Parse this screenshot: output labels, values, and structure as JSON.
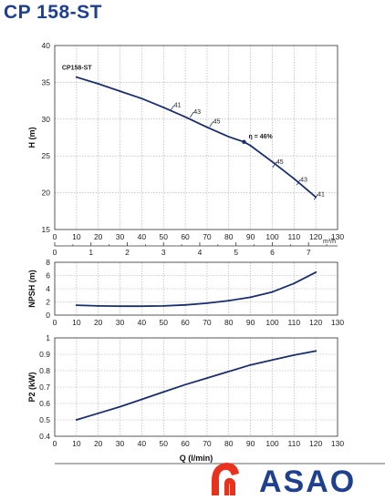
{
  "title": "CP 158-ST",
  "logo_text": "ASAO",
  "colors": {
    "curve": "#1a2e6c",
    "title": "#1f3f8f",
    "grid": "#aaaaaa",
    "logo_red": "#e8321e",
    "logo_blue": "#1f3f8f"
  },
  "chart_data": [
    {
      "type": "line",
      "ylabel": "H (m)",
      "xlim": [
        0,
        130
      ],
      "ylim": [
        15,
        40
      ],
      "yticks": [
        15,
        20,
        25,
        30,
        35,
        40
      ],
      "xticks": [
        0,
        10,
        20,
        30,
        40,
        50,
        60,
        70,
        80,
        90,
        100,
        110,
        120,
        130
      ],
      "secondary_x": {
        "label": "m³/h",
        "ticks": [
          0,
          1,
          2,
          3,
          4,
          5,
          6,
          7
        ]
      },
      "grid": true,
      "series": [
        {
          "name": "CP158-ST",
          "x": [
            10,
            20,
            30,
            40,
            50,
            60,
            70,
            80,
            87,
            90,
            100,
            110,
            120
          ],
          "y": [
            35.7,
            34.8,
            33.8,
            32.8,
            31.6,
            30.3,
            28.9,
            27.6,
            26.9,
            26.4,
            24.2,
            21.9,
            19.4
          ]
        }
      ],
      "annotations": [
        {
          "text": "41",
          "x": 54,
          "y": 31.5
        },
        {
          "text": "43",
          "x": 63,
          "y": 30.6
        },
        {
          "text": "45",
          "x": 72,
          "y": 29.3
        },
        {
          "text": "η = 46%",
          "x": 87,
          "y": 26.9
        },
        {
          "text": "45",
          "x": 101,
          "y": 23.8
        },
        {
          "text": "43",
          "x": 112,
          "y": 21.4
        },
        {
          "text": "41",
          "x": 120,
          "y": 19.4
        }
      ]
    },
    {
      "type": "line",
      "ylabel": "NPSH (m)",
      "xlim": [
        0,
        130
      ],
      "ylim": [
        0,
        8
      ],
      "yticks": [
        0,
        2,
        4,
        6,
        8
      ],
      "xticks": [
        0,
        10,
        20,
        30,
        40,
        50,
        60,
        70,
        80,
        90,
        100,
        110,
        120,
        130
      ],
      "grid": true,
      "series": [
        {
          "x": [
            10,
            20,
            30,
            40,
            50,
            60,
            70,
            80,
            90,
            100,
            110,
            120
          ],
          "y": [
            1.5,
            1.4,
            1.35,
            1.35,
            1.4,
            1.55,
            1.8,
            2.2,
            2.7,
            3.5,
            4.8,
            6.5
          ]
        }
      ]
    },
    {
      "type": "line",
      "xlabel": "Q (l/min)",
      "ylabel": "P2 (kW)",
      "xlim": [
        0,
        130
      ],
      "ylim": [
        0.4,
        1.0
      ],
      "yticks": [
        0.4,
        0.5,
        0.6,
        0.7,
        0.8,
        0.9,
        1
      ],
      "xticks": [
        0,
        10,
        20,
        30,
        40,
        50,
        60,
        70,
        80,
        90,
        100,
        110,
        120,
        130
      ],
      "grid": true,
      "series": [
        {
          "x": [
            10,
            20,
            30,
            40,
            50,
            60,
            70,
            80,
            90,
            100,
            110,
            120
          ],
          "y": [
            0.5,
            0.54,
            0.58,
            0.625,
            0.67,
            0.715,
            0.755,
            0.795,
            0.835,
            0.865,
            0.895,
            0.92
          ]
        }
      ]
    }
  ]
}
